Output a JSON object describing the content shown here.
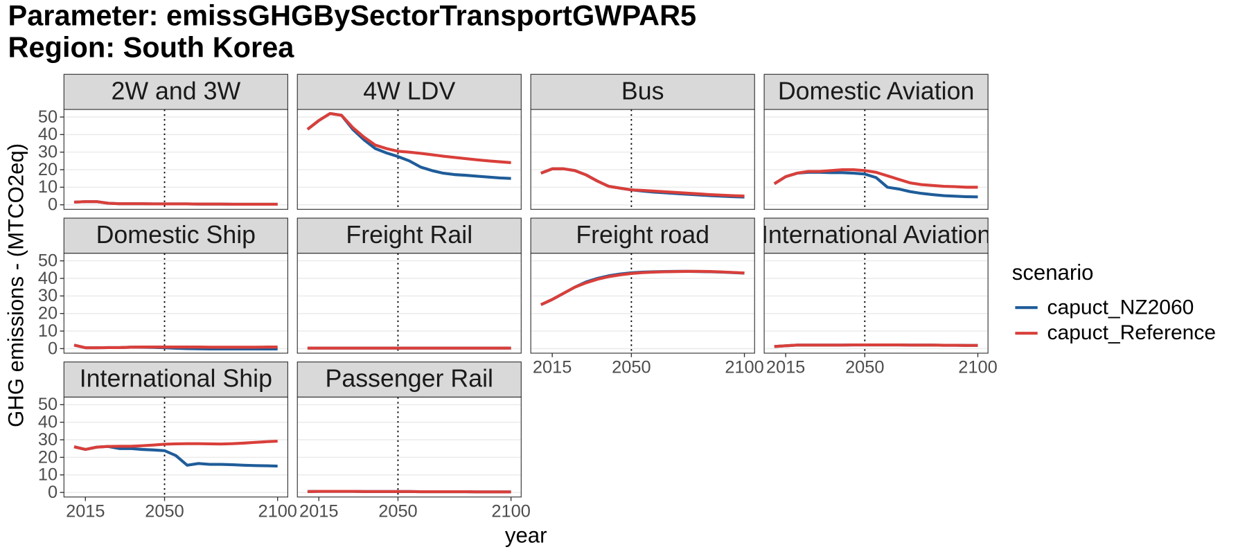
{
  "chart_data": {
    "type": "line",
    "title": "Parameter: emissGHGBySectorTransportGWPAR5",
    "subtitle": "Region: South Korea",
    "x_label": "year",
    "y_label": "GHG emissions - (MTCO2eq)",
    "legend_title": "scenario",
    "series": [
      {
        "name": "capuct_NZ2060",
        "color": "#1f5c99"
      },
      {
        "name": "capuct_Reference",
        "color": "#d93f3a"
      }
    ],
    "x": [
      2010,
      2015,
      2020,
      2025,
      2030,
      2035,
      2040,
      2045,
      2050,
      2055,
      2060,
      2065,
      2070,
      2075,
      2080,
      2085,
      2090,
      2095,
      2100
    ],
    "xlim": [
      2005.5,
      2104.5
    ],
    "xticks": [
      2015,
      2050,
      2100
    ],
    "ylim": [
      -2.6,
      54.3
    ],
    "yticks": [
      0,
      10,
      20,
      30,
      40,
      50
    ],
    "vline": 2050,
    "grid": true,
    "facets": [
      {
        "title": "2W and 3W",
        "series": [
          {
            "values": [
              1.5,
              1.8,
              1.8,
              0.9,
              0.6,
              0.6,
              0.6,
              0.5,
              0.5,
              0.5,
              0.5,
              0.4,
              0.4,
              0.4,
              0.3,
              0.3,
              0.3,
              0.3,
              0.3
            ]
          },
          {
            "values": [
              1.5,
              1.8,
              1.8,
              0.9,
              0.6,
              0.6,
              0.6,
              0.5,
              0.5,
              0.5,
              0.5,
              0.4,
              0.4,
              0.4,
              0.3,
              0.3,
              0.3,
              0.3,
              0.3
            ]
          }
        ]
      },
      {
        "title": "4W LDV",
        "series": [
          {
            "values": [
              43,
              48,
              52,
              51,
              43,
              37,
              32,
              29.5,
              27.5,
              25,
              21.5,
              19.5,
              18,
              17.2,
              16.8,
              16.3,
              15.8,
              15.3,
              15
            ]
          },
          {
            "values": [
              43,
              48,
              52,
              51,
              44,
              38.5,
              34,
              32,
              30.5,
              30,
              29.3,
              28.5,
              27.7,
              27,
              26.3,
              25.6,
              25,
              24.5,
              24
            ]
          }
        ]
      },
      {
        "title": "Bus",
        "series": [
          {
            "values": [
              18,
              20.5,
              20.5,
              19.5,
              17,
              13.5,
              10.5,
              9.5,
              8.5,
              7.8,
              7.2,
              6.8,
              6.4,
              6,
              5.6,
              5.2,
              4.9,
              4.6,
              4.4
            ]
          },
          {
            "values": [
              18,
              20.5,
              20.5,
              19.5,
              17,
              13.5,
              10.5,
              9.5,
              8.5,
              8.2,
              7.8,
              7.4,
              7,
              6.6,
              6.2,
              5.8,
              5.5,
              5.2,
              5
            ]
          }
        ]
      },
      {
        "title": "Domestic Aviation",
        "series": [
          {
            "values": [
              12,
              16,
              18,
              18.5,
              18.5,
              18.3,
              18.3,
              18,
              17.5,
              15.5,
              10,
              9,
              7.5,
              6.5,
              5.8,
              5.2,
              4.9,
              4.6,
              4.5
            ]
          },
          {
            "values": [
              12,
              16,
              18,
              19,
              19,
              19.5,
              20,
              20,
              19.5,
              18.5,
              16.5,
              14.5,
              12.5,
              11.5,
              11,
              10.5,
              10.3,
              10,
              10
            ]
          }
        ]
      },
      {
        "title": "Domestic Ship",
        "series": [
          {
            "values": [
              2,
              0.5,
              0.5,
              0.6,
              0.6,
              0.8,
              0.8,
              0.7,
              0.5,
              0.2,
              0,
              -0.1,
              -0.2,
              -0.2,
              -0.2,
              -0.2,
              -0.2,
              -0.2,
              -0.2
            ]
          },
          {
            "values": [
              2,
              0.5,
              0.5,
              0.6,
              0.6,
              0.8,
              0.9,
              0.9,
              0.9,
              0.9,
              0.9,
              0.9,
              0.8,
              0.8,
              0.8,
              0.8,
              0.8,
              0.9,
              0.9
            ]
          }
        ]
      },
      {
        "title": "Freight Rail",
        "series": [
          {
            "values": [
              0.3,
              0.3,
              0.3,
              0.3,
              0.3,
              0.3,
              0.3,
              0.3,
              0.3,
              0.3,
              0.3,
              0.3,
              0.3,
              0.3,
              0.3,
              0.3,
              0.3,
              0.3,
              0.3
            ]
          },
          {
            "values": [
              0.3,
              0.3,
              0.3,
              0.3,
              0.3,
              0.3,
              0.3,
              0.3,
              0.3,
              0.3,
              0.3,
              0.3,
              0.3,
              0.3,
              0.3,
              0.3,
              0.3,
              0.3,
              0.3
            ]
          }
        ]
      },
      {
        "title": "Freight road",
        "series": [
          {
            "values": [
              25,
              28,
              31.5,
              35,
              38,
              40,
              41.5,
              42.5,
              43.2,
              43.6,
              43.8,
              43.9,
              44,
              44,
              43.9,
              43.8,
              43.6,
              43.3,
              43
            ]
          },
          {
            "values": [
              25,
              28,
              31.5,
              35,
              37.5,
              39.5,
              41,
              42,
              42.8,
              43.3,
              43.6,
              43.8,
              43.9,
              44,
              44,
              43.9,
              43.7,
              43.4,
              43.1
            ]
          }
        ]
      },
      {
        "title": "International Aviation",
        "series": [
          {
            "values": [
              1.2,
              1.6,
              2,
              2,
              2,
              2,
              2,
              2.1,
              2.1,
              2.1,
              2.1,
              2.1,
              2,
              2,
              2,
              1.9,
              1.9,
              1.8,
              1.8
            ]
          },
          {
            "values": [
              1.2,
              1.6,
              2,
              2,
              2,
              2,
              2,
              2.1,
              2.1,
              2.1,
              2.1,
              2.1,
              2,
              2,
              2,
              1.9,
              1.9,
              1.8,
              1.8
            ]
          }
        ]
      },
      {
        "title": "International Ship",
        "series": [
          {
            "values": [
              26,
              24.5,
              25.8,
              26.2,
              25,
              25,
              24.5,
              24.2,
              23.8,
              21,
              15.5,
              16.5,
              16,
              16,
              15.8,
              15.5,
              15.3,
              15.2,
              15
            ]
          },
          {
            "values": [
              26,
              24.5,
              25.8,
              26.2,
              26.3,
              26.3,
              26.6,
              27,
              27.5,
              27.7,
              27.8,
              27.8,
              27.7,
              27.6,
              27.8,
              28.1,
              28.5,
              28.9,
              29.2
            ]
          }
        ]
      },
      {
        "title": "Passenger Rail",
        "series": [
          {
            "values": [
              0.5,
              0.6,
              0.6,
              0.6,
              0.6,
              0.5,
              0.5,
              0.5,
              0.5,
              0.5,
              0.4,
              0.4,
              0.4,
              0.4,
              0.4,
              0.3,
              0.3,
              0.3,
              0.3
            ]
          },
          {
            "values": [
              0.5,
              0.6,
              0.6,
              0.6,
              0.6,
              0.5,
              0.5,
              0.5,
              0.5,
              0.5,
              0.4,
              0.4,
              0.4,
              0.4,
              0.4,
              0.3,
              0.3,
              0.3,
              0.3
            ]
          }
        ]
      }
    ]
  }
}
